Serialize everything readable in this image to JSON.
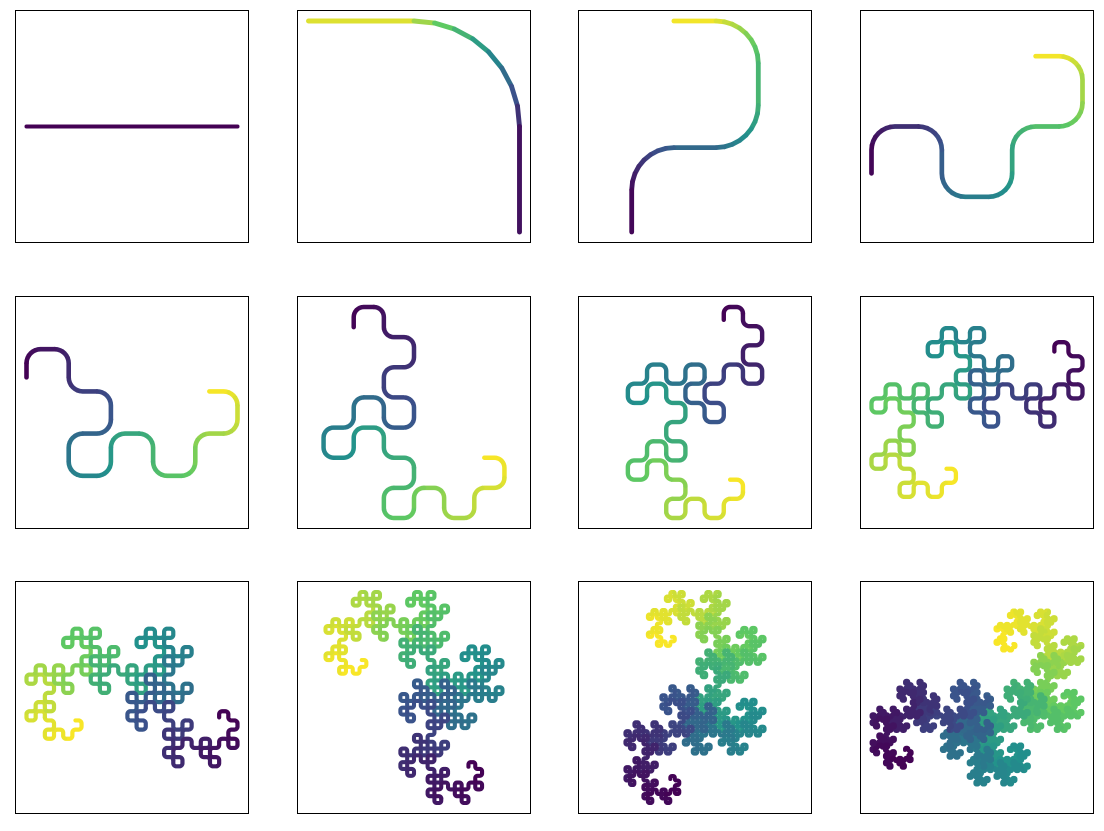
{
  "chart_data": {
    "type": "line",
    "description_free": true,
    "colormap": "viridis",
    "colormap_stops": [
      "#440154",
      "#3b528b",
      "#21918c",
      "#5ec962",
      "#fde725"
    ],
    "axes_visible": false,
    "grid": false,
    "panels": [
      {
        "iteration": 0,
        "x": [
          0,
          1
        ],
        "y": [
          0,
          0
        ]
      },
      {
        "iteration": 1,
        "arcs": 1
      },
      {
        "iteration": 2,
        "arcs": 2
      },
      {
        "iteration": 3,
        "arcs": 4
      },
      {
        "iteration": 4,
        "arcs": 8
      },
      {
        "iteration": 5,
        "arcs": 16
      },
      {
        "iteration": 6,
        "arcs": 32
      },
      {
        "iteration": 7,
        "arcs": 64
      },
      {
        "iteration": 8,
        "arcs": 128
      },
      {
        "iteration": 9,
        "arcs": 256
      },
      {
        "iteration": 10,
        "arcs": 512
      },
      {
        "iteration": 11,
        "arcs": 1024
      }
    ],
    "layout": {
      "rows": 3,
      "cols": 4
    }
  }
}
